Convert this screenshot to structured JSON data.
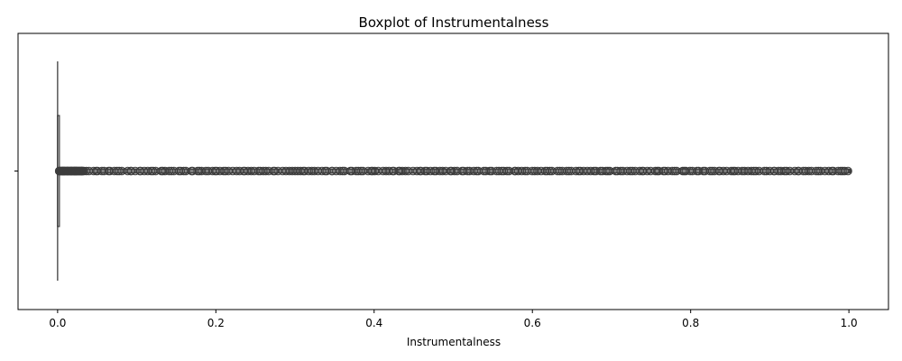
{
  "chart_data": {
    "type": "boxplot",
    "orientation": "horizontal",
    "title": "Boxplot of Instrumentalness",
    "xlabel": "Instrumentalness",
    "ylabel": "",
    "xlim": [
      -0.05,
      1.05
    ],
    "xticks": [
      0.0,
      0.2,
      0.4,
      0.6,
      0.8,
      1.0
    ],
    "xtick_labels": [
      "0.0",
      "0.2",
      "0.4",
      "0.6",
      "0.8",
      "1.0"
    ],
    "grid": false,
    "legend": "none",
    "box": {
      "min": 0.0,
      "q1": 0.0,
      "median": 0.0,
      "q3": 0.0,
      "max": 0.002,
      "outliers_range": [
        0.002,
        1.0
      ],
      "outliers_note": "dense continuous band of outlier markers"
    },
    "colors": {
      "box_line": "#3d3d3d",
      "outlier_edge": "#3d3d3d",
      "axes": "#000000"
    }
  }
}
